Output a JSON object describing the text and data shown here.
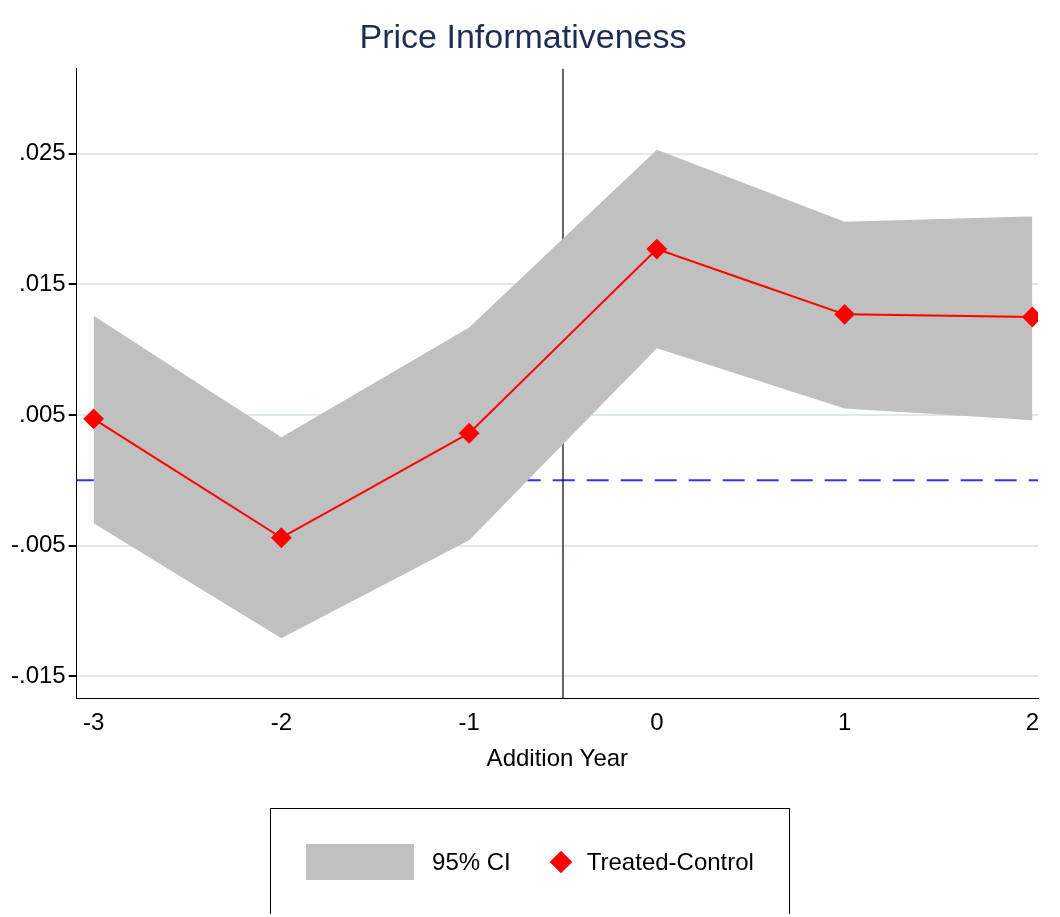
{
  "chart_data": {
    "type": "line",
    "title": "Price Informativeness",
    "xlabel": "Addition Year",
    "x": [
      -3,
      -2,
      -1,
      0,
      1,
      2
    ],
    "series": [
      {
        "name": "Treated-Control",
        "color": "#ff0000",
        "marker": "diamond",
        "values": [
          0.0047,
          -0.0044,
          0.0036,
          0.0177,
          0.0127,
          0.0125
        ],
        "lower": [
          -0.0033,
          -0.0121,
          -0.0046,
          0.0101,
          0.0055,
          0.0046
        ],
        "upper": [
          0.0126,
          0.0033,
          0.0117,
          0.0253,
          0.0198,
          0.0202
        ]
      }
    ],
    "annotations": [
      "95% CI"
    ],
    "xlim": [
      -3.09,
      2.03
    ],
    "xticks": [
      -3,
      -2,
      -1,
      0,
      1,
      2
    ],
    "ylim": [
      -0.0167,
      0.0315
    ],
    "yticks": [
      {
        "value": -0.015,
        "label": "-.015"
      },
      {
        "value": -0.005,
        "label": "-.005"
      },
      {
        "value": 0.005,
        "label": ".005"
      },
      {
        "value": 0.015,
        "label": ".015"
      },
      {
        "value": 0.025,
        "label": ".025"
      }
    ],
    "grid": "y",
    "legend": "bottom",
    "ref_lines": [
      {
        "axis": "y",
        "value": 0,
        "color": "#3333ff",
        "line_style": "dashed"
      },
      {
        "axis": "x",
        "value": -0.5,
        "color": "#000000",
        "line_style": "solid"
      }
    ]
  }
}
